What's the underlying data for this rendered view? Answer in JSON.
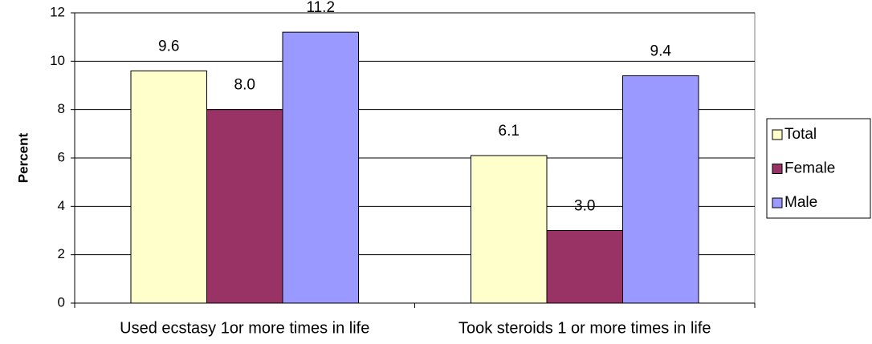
{
  "chart_data": {
    "type": "bar",
    "y_label": "Percent",
    "categories": [
      "Used ecstasy 1or more times in life",
      "Took steroids 1 or more times in life"
    ],
    "series": [
      {
        "name": "Total",
        "color": "#ffffcc",
        "values": [
          9.6,
          6.1
        ],
        "value_labels": [
          "9.6",
          "6.1"
        ]
      },
      {
        "name": "Female",
        "color": "#993366",
        "values": [
          8.0,
          3.0
        ],
        "value_labels": [
          "8.0",
          "3.0"
        ]
      },
      {
        "name": "Male",
        "color": "#9999ff",
        "values": [
          11.2,
          9.4
        ],
        "value_labels": [
          "11.2",
          "9.4"
        ]
      }
    ],
    "ylim": [
      0,
      12
    ],
    "yticks": [
      0,
      2,
      4,
      6,
      8,
      10,
      12
    ],
    "grid": true,
    "legend": "right"
  }
}
